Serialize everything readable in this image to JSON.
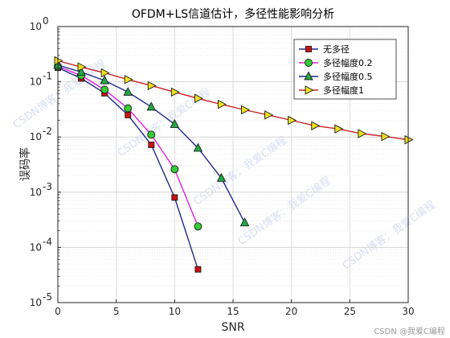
{
  "chart_data": {
    "type": "line",
    "title": "OFDM+LS信道估计，多径性能影响分析",
    "xlabel": "SNR",
    "ylabel": "误码率",
    "xlim": [
      0,
      30
    ],
    "ylim": [
      1e-05,
      1
    ],
    "yscale": "log",
    "xticks": [
      0,
      5,
      10,
      15,
      20,
      25,
      30
    ],
    "yticks": [
      {
        "value": 1,
        "exp": "0"
      },
      {
        "value": 0.1,
        "exp": "-1"
      },
      {
        "value": 0.01,
        "exp": "-2"
      },
      {
        "value": 0.001,
        "exp": "-3"
      },
      {
        "value": 0.0001,
        "exp": "-4"
      },
      {
        "value": 1e-05,
        "exp": "-5"
      }
    ],
    "grid": true,
    "legend_position": "top-right",
    "series": [
      {
        "name": "无多径",
        "color": "#1f2a8c",
        "marker": "square",
        "marker_color": "#cc1111",
        "x": [
          0,
          2,
          4,
          6,
          8,
          10,
          12
        ],
        "values": [
          0.18,
          0.115,
          0.062,
          0.025,
          0.0072,
          0.0008,
          4e-05
        ]
      },
      {
        "name": "多径幅度0.2",
        "color": "#e020e0",
        "marker": "circle",
        "marker_color": "#33cc33",
        "x": [
          0,
          2,
          4,
          6,
          8,
          10,
          12
        ],
        "values": [
          0.19,
          0.13,
          0.072,
          0.033,
          0.011,
          0.0026,
          0.00024
        ]
      },
      {
        "name": "多径幅度0.5",
        "color": "#1f2a8c",
        "marker": "triangle",
        "marker_color": "#22aa44",
        "x": [
          0,
          2,
          4,
          6,
          8,
          10,
          12,
          14,
          16
        ],
        "values": [
          0.2,
          0.15,
          0.105,
          0.065,
          0.035,
          0.017,
          0.0063,
          0.0018,
          0.00028
        ]
      },
      {
        "name": "多径幅度1",
        "color": "#cc2222",
        "marker": "triangle-right",
        "marker_color": "#f0e020",
        "x": [
          0,
          2,
          4,
          6,
          8,
          10,
          12,
          14,
          16,
          18,
          20,
          22,
          24,
          26,
          28,
          30
        ],
        "values": [
          0.24,
          0.185,
          0.145,
          0.11,
          0.085,
          0.065,
          0.05,
          0.039,
          0.031,
          0.025,
          0.02,
          0.016,
          0.014,
          0.0115,
          0.0102,
          0.0089
        ]
      }
    ]
  },
  "watermarks": [
    "CSDN博客：我爱C编程",
    "CSDN博客：我爱C编程",
    "CSDN博客：我爱C编程",
    "CSDN博客：我爱C编程",
    "CSDN博客：我爱C编程"
  ],
  "footer": "CSDN @我爱C编程"
}
